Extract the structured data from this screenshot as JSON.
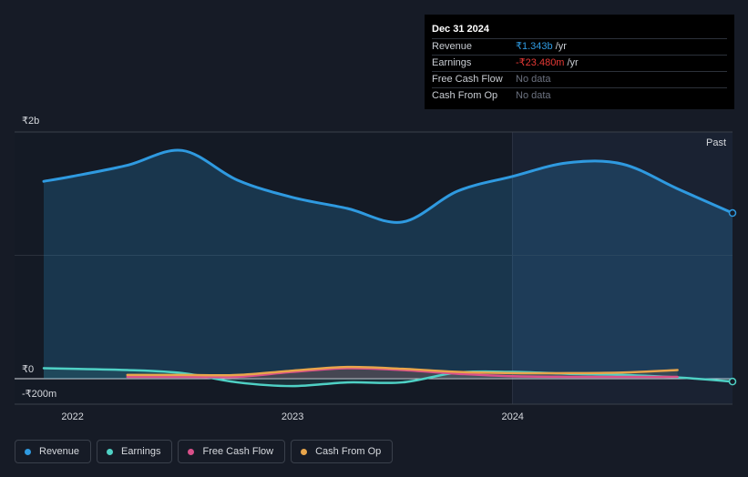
{
  "tooltip": {
    "date": "Dec 31 2024",
    "rows": [
      {
        "label": "Revenue",
        "value": "₹1.343b",
        "unit": "/yr",
        "color": "#2f9ae0"
      },
      {
        "label": "Earnings",
        "value": "-₹23.480m",
        "unit": "/yr",
        "color": "#e53935"
      },
      {
        "label": "Free Cash Flow",
        "value": "No data",
        "unit": "",
        "color": "#6c7280"
      },
      {
        "label": "Cash From Op",
        "value": "No data",
        "unit": "",
        "color": "#6c7280"
      }
    ]
  },
  "legend": [
    {
      "label": "Revenue",
      "color": "#2f9ae0"
    },
    {
      "label": "Earnings",
      "color": "#4fd1c5"
    },
    {
      "label": "Free Cash Flow",
      "color": "#d9508a"
    },
    {
      "label": "Cash From Op",
      "color": "#e8a54b"
    }
  ],
  "chart_data": {
    "type": "area",
    "y_tick_labels": [
      "₹2b",
      "₹0",
      "-₹200m"
    ],
    "x_tick_labels": [
      "2022",
      "2023",
      "2024"
    ],
    "past_label": "Past",
    "ylim": [
      -200,
      2000
    ],
    "y_unit": "₹m",
    "grid": true,
    "x_ticks": [
      2022.0,
      2023.0,
      2024.0
    ],
    "xlim": [
      2021.87,
      2025.0
    ],
    "highlight_start": 2024.0,
    "series": [
      {
        "name": "Revenue",
        "color": "#2f9ae0",
        "fill": true,
        "points": [
          [
            2021.87,
            1600
          ],
          [
            2022.0,
            1640
          ],
          [
            2022.25,
            1730
          ],
          [
            2022.5,
            1850
          ],
          [
            2022.75,
            1610
          ],
          [
            2023.0,
            1470
          ],
          [
            2023.25,
            1380
          ],
          [
            2023.5,
            1270
          ],
          [
            2023.75,
            1520
          ],
          [
            2024.0,
            1640
          ],
          [
            2024.25,
            1750
          ],
          [
            2024.5,
            1740
          ],
          [
            2024.75,
            1540
          ],
          [
            2025.0,
            1343
          ]
        ]
      },
      {
        "name": "Earnings",
        "color": "#4fd1c5",
        "fill": false,
        "points": [
          [
            2021.87,
            85
          ],
          [
            2022.0,
            80
          ],
          [
            2022.25,
            70
          ],
          [
            2022.5,
            45
          ],
          [
            2022.75,
            -30
          ],
          [
            2023.0,
            -60
          ],
          [
            2023.25,
            -30
          ],
          [
            2023.5,
            -30
          ],
          [
            2023.75,
            50
          ],
          [
            2024.0,
            55
          ],
          [
            2024.25,
            40
          ],
          [
            2024.5,
            30
          ],
          [
            2024.75,
            10
          ],
          [
            2025.0,
            -23.48
          ]
        ]
      },
      {
        "name": "Free Cash Flow",
        "color": "#d9508a",
        "fill": false,
        "points": [
          [
            2022.25,
            15
          ],
          [
            2022.5,
            15
          ],
          [
            2022.75,
            15
          ],
          [
            2023.0,
            55
          ],
          [
            2023.25,
            85
          ],
          [
            2023.5,
            70
          ],
          [
            2023.75,
            40
          ],
          [
            2024.0,
            20
          ],
          [
            2024.25,
            15
          ],
          [
            2024.5,
            15
          ],
          [
            2024.75,
            15
          ]
        ]
      },
      {
        "name": "Cash From Op",
        "color": "#e8a54b",
        "fill": false,
        "points": [
          [
            2022.25,
            30
          ],
          [
            2022.5,
            30
          ],
          [
            2022.75,
            30
          ],
          [
            2023.0,
            65
          ],
          [
            2023.25,
            95
          ],
          [
            2023.5,
            80
          ],
          [
            2023.75,
            55
          ],
          [
            2024.0,
            45
          ],
          [
            2024.25,
            45
          ],
          [
            2024.5,
            50
          ],
          [
            2024.75,
            70
          ]
        ]
      }
    ]
  }
}
